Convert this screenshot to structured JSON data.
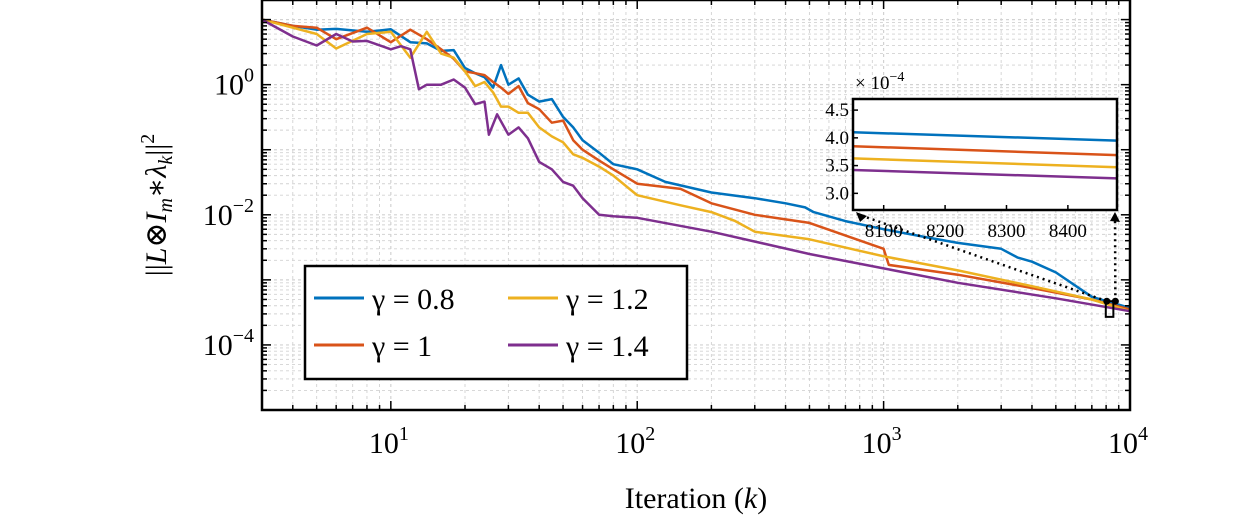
{
  "chart_data": [
    {
      "type": "line",
      "xscale": "log",
      "yscale": "log",
      "xlim": [
        3,
        10000
      ],
      "ylim": [
        1e-05,
        20
      ],
      "grid": true,
      "xlabel_text": "Iteration (",
      "xlabel_var": "k",
      "xlabel_close": ")",
      "ylabel": "||L⊗I_m*λ_k||^2",
      "xticks": [
        {
          "value": 10,
          "base": "10",
          "exp": "1"
        },
        {
          "value": 100,
          "base": "10",
          "exp": "2"
        },
        {
          "value": 1000,
          "base": "10",
          "exp": "3"
        },
        {
          "value": 10000,
          "base": "10",
          "exp": "4"
        }
      ],
      "yticks": [
        {
          "value": 1,
          "base": "10",
          "exp": "0"
        },
        {
          "value": 0.01,
          "base": "10",
          "exp": "−2"
        },
        {
          "value": 0.0001,
          "base": "10",
          "exp": "−4"
        }
      ],
      "legend_position": "lower-left",
      "series": [
        {
          "name": "γ = 0.8",
          "color": "#0072BD",
          "x": [
            3,
            4,
            5,
            6,
            8,
            10,
            12,
            14,
            16,
            18,
            20,
            22,
            24,
            26,
            28,
            30,
            33,
            36,
            40,
            45,
            50,
            55,
            60,
            70,
            80,
            100,
            130,
            200,
            300,
            400,
            480,
            520,
            700,
            1000,
            1500,
            2000,
            3000,
            3500,
            4000,
            5000,
            7000,
            10000
          ],
          "y": [
            10,
            8,
            7,
            7.2,
            6.5,
            7.1,
            4.5,
            4.3,
            3.3,
            3.4,
            1.8,
            1.5,
            1.3,
            0.9,
            2.0,
            1.0,
            1.25,
            0.7,
            0.55,
            0.6,
            0.32,
            0.22,
            0.14,
            0.09,
            0.06,
            0.05,
            0.032,
            0.022,
            0.018,
            0.015,
            0.013,
            0.011,
            0.008,
            0.006,
            0.0045,
            0.0037,
            0.003,
            0.0022,
            0.0019,
            0.0013,
            0.00055,
            0.00037
          ]
        },
        {
          "name": "γ = 1",
          "color": "#D95319",
          "x": [
            3,
            4,
            5,
            6,
            8,
            10,
            12,
            14,
            16,
            18,
            20,
            22,
            24,
            26,
            28,
            30,
            33,
            36,
            40,
            45,
            50,
            55,
            60,
            70,
            80,
            100,
            150,
            200,
            300,
            400,
            500,
            1000,
            1050,
            2000,
            4000,
            7000,
            10000
          ],
          "y": [
            10,
            8,
            7.5,
            5.0,
            7.5,
            4.5,
            7.0,
            5.0,
            3.5,
            2.5,
            1.6,
            1.5,
            1.4,
            1.1,
            0.9,
            0.72,
            0.95,
            0.52,
            0.42,
            0.26,
            0.28,
            0.14,
            0.1,
            0.068,
            0.05,
            0.03,
            0.025,
            0.015,
            0.01,
            0.0085,
            0.0075,
            0.003,
            0.0017,
            0.0012,
            0.00075,
            0.0005,
            0.00035
          ]
        },
        {
          "name": "γ = 1.2",
          "color": "#EDB120",
          "x": [
            3,
            4,
            5,
            6,
            8,
            10,
            12,
            14,
            16,
            18,
            20,
            22,
            24,
            26,
            28,
            30,
            33,
            36,
            40,
            45,
            50,
            55,
            60,
            70,
            80,
            100,
            150,
            200,
            250,
            300,
            500,
            1000,
            2000,
            4000,
            7000,
            10000
          ],
          "y": [
            10,
            7.5,
            6,
            3.6,
            6.0,
            6.5,
            2.6,
            6.5,
            3.0,
            2.6,
            1.6,
            0.95,
            1.1,
            0.76,
            0.46,
            0.46,
            0.37,
            0.37,
            0.22,
            0.16,
            0.13,
            0.085,
            0.075,
            0.055,
            0.04,
            0.02,
            0.014,
            0.011,
            0.008,
            0.0055,
            0.0042,
            0.0023,
            0.0014,
            0.0008,
            0.0005,
            0.00033
          ]
        },
        {
          "name": "γ = 1.4",
          "color": "#7E2F8E",
          "x": [
            3,
            4,
            5,
            6,
            7,
            8,
            10,
            11,
            12,
            13,
            14,
            16,
            18,
            20,
            22,
            24,
            25,
            27,
            30,
            33,
            36,
            40,
            45,
            50,
            55,
            60,
            70,
            80,
            100,
            200,
            500,
            1000,
            2000,
            5000,
            10000
          ],
          "y": [
            10,
            5.5,
            4.0,
            6.0,
            4.6,
            4.7,
            3.5,
            3.9,
            3.5,
            0.85,
            1.0,
            1.0,
            1.2,
            0.9,
            0.5,
            0.55,
            0.17,
            0.35,
            0.17,
            0.22,
            0.15,
            0.065,
            0.05,
            0.032,
            0.028,
            0.018,
            0.01,
            0.0095,
            0.009,
            0.0055,
            0.0025,
            0.0015,
            0.0009,
            0.00052,
            0.00033
          ]
        }
      ]
    },
    {
      "type": "line",
      "role": "inset",
      "xscale": "linear",
      "yscale": "linear",
      "xlim": [
        8050,
        8480
      ],
      "ylim": [
        0.00027,
        0.00047
      ],
      "scale_label_prefix": "× 10",
      "scale_label_exp": "−4",
      "xticks": [
        {
          "value": 8100,
          "label": "8100"
        },
        {
          "value": 8200,
          "label": "8200"
        },
        {
          "value": 8300,
          "label": "8300"
        },
        {
          "value": 8400,
          "label": "8400"
        }
      ],
      "yticks": [
        {
          "value": 0.0003,
          "label": "3.0"
        },
        {
          "value": 0.00035,
          "label": "3.5"
        },
        {
          "value": 0.0004,
          "label": "4.0"
        },
        {
          "value": 0.00045,
          "label": "4.5"
        }
      ],
      "series": [
        {
          "name": "γ = 0.8",
          "color": "#0072BD",
          "x": [
            8050,
            8480
          ],
          "y": [
            0.00041,
            0.000395
          ]
        },
        {
          "name": "γ = 1",
          "color": "#D95319",
          "x": [
            8050,
            8480
          ],
          "y": [
            0.000385,
            0.000369
          ]
        },
        {
          "name": "γ = 1.2",
          "color": "#EDB120",
          "x": [
            8050,
            8480
          ],
          "y": [
            0.000363,
            0.000347
          ]
        },
        {
          "name": "γ = 1.4",
          "color": "#7E2F8E",
          "x": [
            8050,
            8480
          ],
          "y": [
            0.000342,
            0.000327
          ]
        }
      ]
    }
  ]
}
